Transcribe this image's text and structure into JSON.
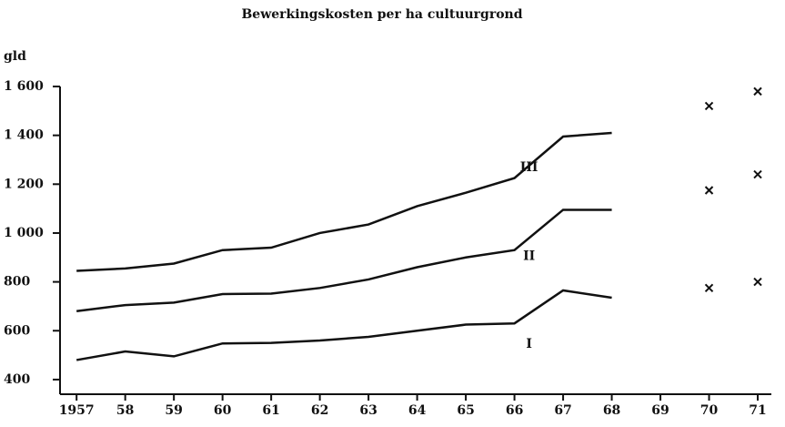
{
  "chart_data": {
    "type": "line",
    "title": "Bewerkingskosten per ha cultuurgrond",
    "ylabel": "gld",
    "x": [
      1957,
      1958,
      1959,
      1960,
      1961,
      1962,
      1963,
      1964,
      1965,
      1966,
      1967,
      1968
    ],
    "series": [
      {
        "name": "I",
        "color": "#111111",
        "values": [
          480,
          515,
          495,
          548,
          550,
          560,
          575,
          600,
          625,
          630,
          765,
          735
        ]
      },
      {
        "name": "II",
        "color": "#111111",
        "values": [
          680,
          705,
          715,
          750,
          752,
          775,
          810,
          860,
          900,
          930,
          1095,
          1095
        ]
      },
      {
        "name": "III",
        "color": "#111111",
        "values": [
          845,
          855,
          875,
          930,
          940,
          1000,
          1035,
          1110,
          1165,
          1225,
          1395,
          1410
        ]
      }
    ],
    "points": [
      {
        "x": 1970,
        "values": [
          775,
          1175,
          1520
        ]
      },
      {
        "x": 1971,
        "values": [
          800,
          1240,
          1580
        ]
      }
    ],
    "xlim": [
      1956.66,
      1971.28
    ],
    "xticks": [
      1957,
      {
        "value": 1958,
        "label": "58"
      },
      {
        "value": 1959,
        "label": "59"
      },
      {
        "value": 1960,
        "label": "60"
      },
      {
        "value": 1961,
        "label": "61"
      },
      {
        "value": 1962,
        "label": "62"
      },
      {
        "value": 1963,
        "label": "63"
      },
      {
        "value": 1964,
        "label": "64"
      },
      {
        "value": 1965,
        "label": "65"
      },
      {
        "value": 1966,
        "label": "66"
      },
      {
        "value": 1967,
        "label": "67"
      },
      {
        "value": 1968,
        "label": "68"
      },
      {
        "value": 1969,
        "label": "69"
      },
      {
        "value": 1970,
        "label": "70"
      },
      {
        "value": 1971,
        "label": "71"
      }
    ],
    "ylim": [
      340,
      1600
    ],
    "yticks": [
      400,
      600,
      800,
      {
        "value": 1000,
        "label": "1 000"
      },
      {
        "value": 1200,
        "label": "1 200"
      },
      {
        "value": 1400,
        "label": "1 400"
      },
      {
        "value": 1600,
        "label": "1 600"
      }
    ],
    "grid": false
  }
}
